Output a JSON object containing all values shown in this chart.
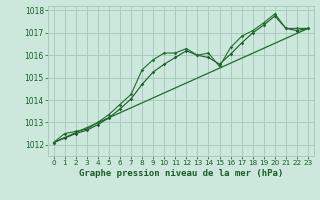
{
  "title": "Graphe pression niveau de la mer (hPa)",
  "background_color": "#cce8dc",
  "grid_color": "#aaccbb",
  "line_color_dark": "#1a5c28",
  "line_color_mid": "#236b30",
  "xlim": [
    -0.5,
    23.5
  ],
  "ylim": [
    1011.5,
    1018.2
  ],
  "xticks": [
    0,
    1,
    2,
    3,
    4,
    5,
    6,
    7,
    8,
    9,
    10,
    11,
    12,
    13,
    14,
    15,
    16,
    17,
    18,
    19,
    20,
    21,
    22,
    23
  ],
  "yticks": [
    1012,
    1013,
    1014,
    1015,
    1016,
    1017,
    1018
  ],
  "series1_x": [
    0,
    1,
    2,
    3,
    4,
    5,
    6,
    7,
    8,
    9,
    10,
    11,
    12,
    13,
    14,
    15,
    16,
    17,
    18,
    19,
    20,
    21,
    22,
    23
  ],
  "series1_y": [
    1012.1,
    1012.5,
    1012.6,
    1012.7,
    1013.0,
    1013.35,
    1013.8,
    1014.25,
    1015.35,
    1015.8,
    1016.1,
    1016.1,
    1016.3,
    1016.0,
    1016.1,
    1015.5,
    1016.35,
    1016.85,
    1017.1,
    1017.45,
    1017.85,
    1017.2,
    1017.2,
    1017.2
  ],
  "series2_x": [
    0,
    1,
    2,
    3,
    4,
    5,
    6,
    7,
    8,
    9,
    10,
    11,
    12,
    13,
    14,
    15,
    16,
    17,
    18,
    19,
    20,
    21,
    22,
    23
  ],
  "series2_y": [
    1012.1,
    1012.3,
    1012.5,
    1012.65,
    1012.9,
    1013.2,
    1013.6,
    1014.05,
    1014.7,
    1015.25,
    1015.6,
    1015.9,
    1016.2,
    1016.0,
    1015.9,
    1015.6,
    1016.05,
    1016.55,
    1017.0,
    1017.35,
    1017.75,
    1017.2,
    1017.1,
    1017.2
  ],
  "trend_x": [
    0,
    23
  ],
  "trend_y": [
    1012.1,
    1017.2
  ],
  "title_fontsize": 6.5,
  "tick_fontsize": 5.2
}
